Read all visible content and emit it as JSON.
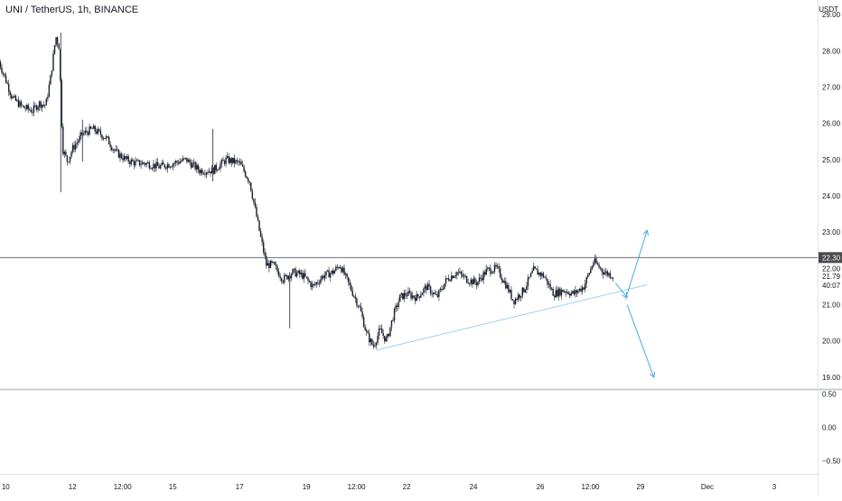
{
  "header": {
    "title": "UNI / TetherUS, 1h, BINANCE"
  },
  "price_axis": {
    "currency": "USDT"
  },
  "colors": {
    "candle_body": "#1a1e2b",
    "wick": "#4a4f5c",
    "price_line": "#6b6f78",
    "last_price_tag": "#4a4a4a",
    "trend_line": "#9fd0ef",
    "arrow": "#4aa8e8",
    "axis_text": "#131722",
    "pane_divider": "#c9ccd4"
  },
  "chart_data": {
    "type": "candlestick",
    "title": "UNI / TetherUS, 1h, BINANCE",
    "symbol": "UNI / TetherUS",
    "interval": "1h",
    "exchange": "BINANCE",
    "currency": "USDT",
    "price_ticks": [
      "29.00",
      "28.00",
      "27.00",
      "26.00",
      "25.00",
      "24.00",
      "23.00",
      "22.00",
      "21.00",
      "20.00",
      "19.00"
    ],
    "price_tick_values": [
      29,
      28,
      27,
      26,
      25,
      24,
      23,
      22,
      21,
      20,
      19
    ],
    "ylim": [
      18.65,
      29.4
    ],
    "last_price": {
      "value": 22.3,
      "label": "22.30"
    },
    "current_price": {
      "value": 21.79,
      "label": "21.79"
    },
    "countdown": "40:07",
    "indicator_ticks": [
      "0.50",
      "0.00",
      "−0.50"
    ],
    "indicator_tick_values": [
      0.5,
      0.0,
      -0.5
    ],
    "indicator_ylim": [
      -0.7,
      0.55
    ],
    "x_ticks": [
      "10",
      "12",
      "12:00",
      "15",
      "17",
      "19",
      "12:00",
      "22",
      "24",
      "26",
      "12:00",
      "29",
      "Dec",
      "3"
    ],
    "x_tick_days": [
      10,
      12,
      13.5,
      15,
      17,
      19,
      20.5,
      22,
      24,
      26,
      27.5,
      29,
      31,
      33
    ],
    "x_range_days": [
      9.83,
      34.3
    ],
    "price_path": [
      [
        9.8,
        27.7
      ],
      [
        10.0,
        27.2
      ],
      [
        10.2,
        26.7
      ],
      [
        10.5,
        26.45
      ],
      [
        10.8,
        26.35
      ],
      [
        11.0,
        26.55
      ],
      [
        11.2,
        26.5
      ],
      [
        11.35,
        27.3
      ],
      [
        11.5,
        28.4
      ],
      [
        11.6,
        28.1
      ],
      [
        11.7,
        25.3
      ],
      [
        11.85,
        24.95
      ],
      [
        12.0,
        25.3
      ],
      [
        12.3,
        25.7
      ],
      [
        12.6,
        25.85
      ],
      [
        13.0,
        25.6
      ],
      [
        13.3,
        25.2
      ],
      [
        13.6,
        25.0
      ],
      [
        13.9,
        24.9
      ],
      [
        14.2,
        24.9
      ],
      [
        14.6,
        24.8
      ],
      [
        15.0,
        24.9
      ],
      [
        15.4,
        25.0
      ],
      [
        15.8,
        24.7
      ],
      [
        16.2,
        24.7
      ],
      [
        16.6,
        25.0
      ],
      [
        17.0,
        24.9
      ],
      [
        17.3,
        24.4
      ],
      [
        17.6,
        23.0
      ],
      [
        17.8,
        22.1
      ],
      [
        18.0,
        22.1
      ],
      [
        18.3,
        21.7
      ],
      [
        18.6,
        21.9
      ],
      [
        18.9,
        21.8
      ],
      [
        19.2,
        21.5
      ],
      [
        19.5,
        21.8
      ],
      [
        19.8,
        21.9
      ],
      [
        20.0,
        22.1
      ],
      [
        20.3,
        21.5
      ],
      [
        20.6,
        20.9
      ],
      [
        20.8,
        20.2
      ],
      [
        21.0,
        19.85
      ],
      [
        21.2,
        20.3
      ],
      [
        21.4,
        20.0
      ],
      [
        21.6,
        20.7
      ],
      [
        21.8,
        21.2
      ],
      [
        22.0,
        21.3
      ],
      [
        22.3,
        21.2
      ],
      [
        22.6,
        21.5
      ],
      [
        22.9,
        21.2
      ],
      [
        23.2,
        21.7
      ],
      [
        23.5,
        21.9
      ],
      [
        23.8,
        21.7
      ],
      [
        24.1,
        21.6
      ],
      [
        24.4,
        21.95
      ],
      [
        24.7,
        22.0
      ],
      [
        25.0,
        21.5
      ],
      [
        25.2,
        21.1
      ],
      [
        25.5,
        21.4
      ],
      [
        25.8,
        21.95
      ],
      [
        26.1,
        21.8
      ],
      [
        26.4,
        21.3
      ],
      [
        26.7,
        21.4
      ],
      [
        27.0,
        21.3
      ],
      [
        27.3,
        21.5
      ],
      [
        27.6,
        22.2
      ],
      [
        27.9,
        21.9
      ],
      [
        28.2,
        21.8
      ]
    ],
    "wick_spikes": [
      {
        "day": 11.65,
        "high": 28.5,
        "low": 24.1
      },
      {
        "day": 16.2,
        "high": 25.85,
        "low": 24.4
      },
      {
        "day": 18.5,
        "high": 21.9,
        "low": 20.35
      },
      {
        "day": 12.3,
        "high": 26.1,
        "low": 24.95
      }
    ],
    "drawings": {
      "trend_line": {
        "from": [
          21.1,
          19.75
        ],
        "to": [
          29.2,
          21.55
        ]
      },
      "arrow_up": {
        "from": [
          28.55,
          21.15
        ],
        "to": [
          29.2,
          23.05
        ]
      },
      "arrow_short": {
        "from": [
          28.25,
          21.6
        ],
        "to": [
          28.6,
          21.2
        ]
      },
      "arrow_down": {
        "from": [
          28.6,
          21.0
        ],
        "to": [
          29.4,
          19.0
        ]
      }
    }
  }
}
